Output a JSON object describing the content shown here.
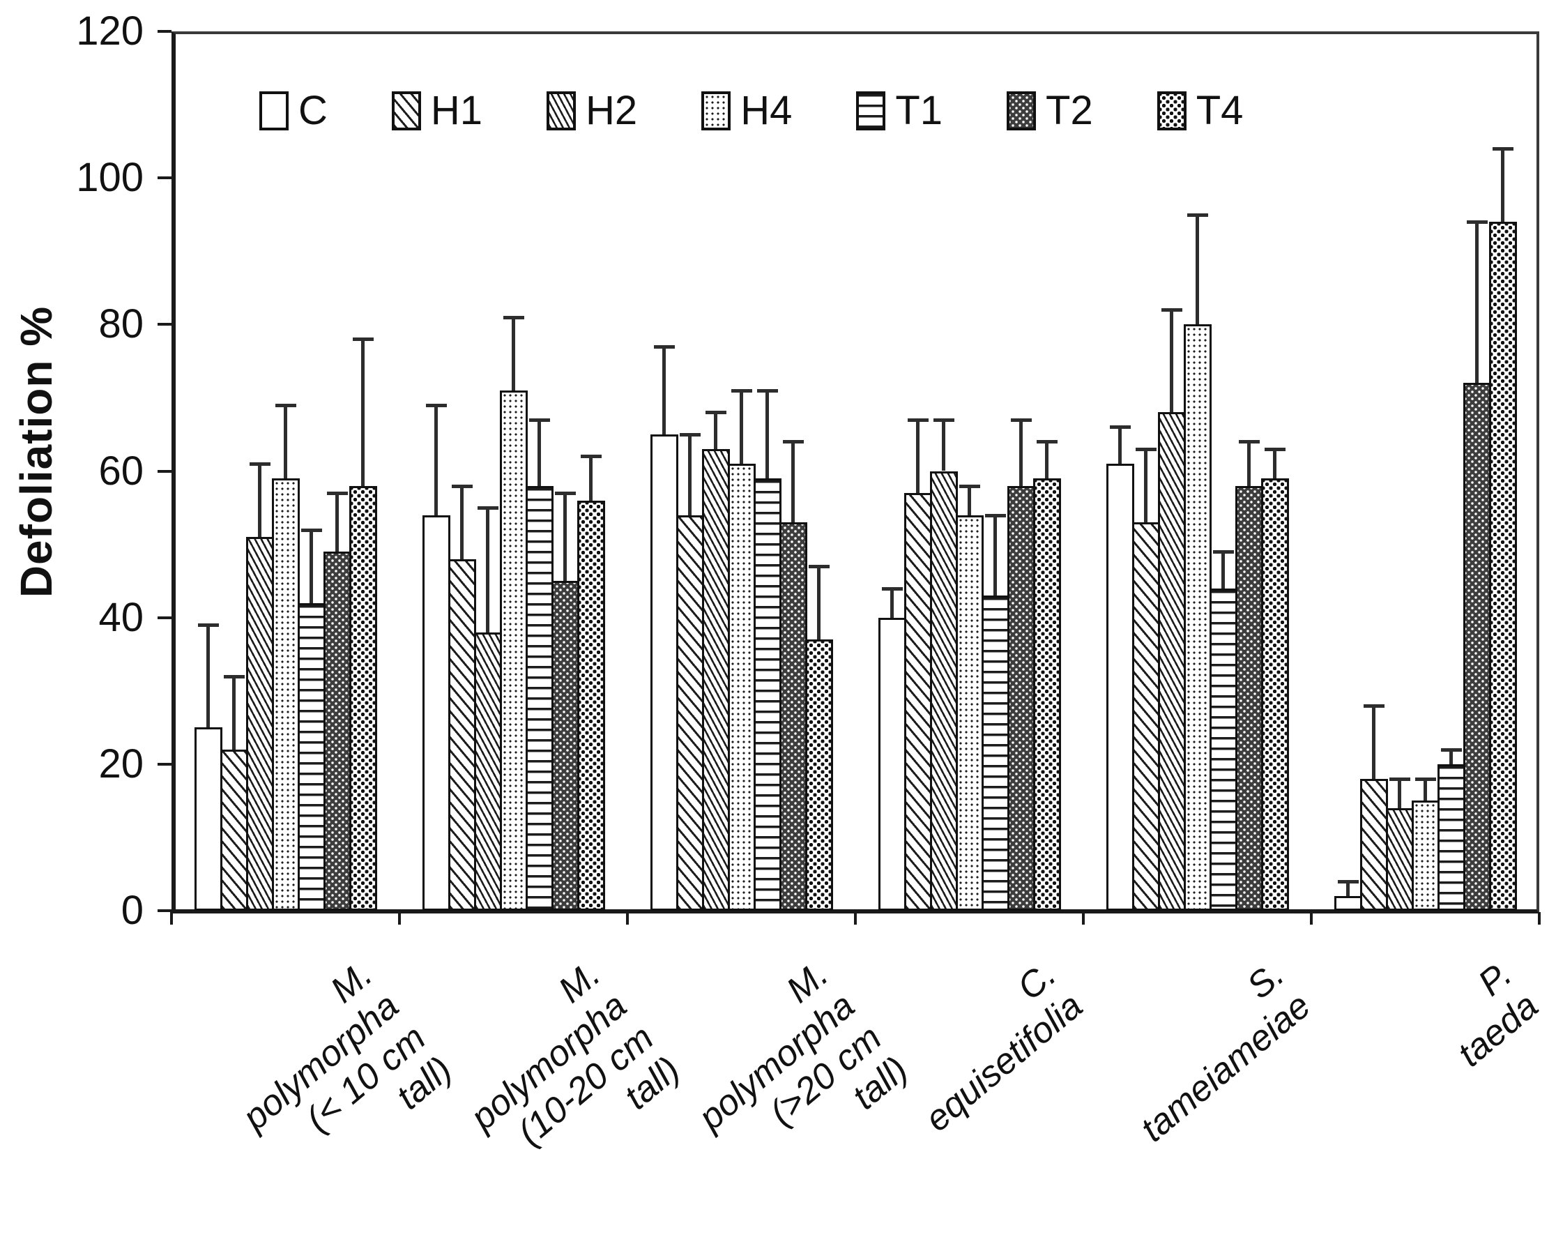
{
  "chart_data": {
    "type": "bar",
    "title": "",
    "ylabel": "Defoliation %",
    "xlabel": "",
    "ylim": [
      0,
      120
    ],
    "yticks": [
      0,
      20,
      40,
      60,
      80,
      100,
      120
    ],
    "grid": false,
    "legend_position": "top-inside-horizontal",
    "error_bars": "upper-only",
    "bar_outline_color": "#111111",
    "categories": [
      "M. polymorpha\n(< 10 cm tall)",
      "M. polymorpha\n(10-20 cm tall)",
      "M. polymorpha\n(>20 cm tall)",
      "C. equisetifolia",
      "S. tameiameiae",
      "P. taeda"
    ],
    "series": [
      {
        "name": "C",
        "pattern": "plain",
        "values": [
          25,
          54,
          65,
          40,
          61,
          2
        ],
        "errors_up": [
          14,
          15,
          12,
          4,
          5,
          2
        ]
      },
      {
        "name": "H1",
        "pattern": "hatch-light",
        "values": [
          22,
          48,
          54,
          57,
          53,
          18
        ],
        "errors_up": [
          10,
          10,
          11,
          10,
          10,
          10
        ]
      },
      {
        "name": "H2",
        "pattern": "hatch-dense",
        "values": [
          51,
          38,
          63,
          60,
          68,
          14
        ],
        "errors_up": [
          10,
          17,
          5,
          7,
          14,
          4
        ]
      },
      {
        "name": "H4",
        "pattern": "dots-fine",
        "values": [
          59,
          71,
          61,
          54,
          80,
          15
        ],
        "errors_up": [
          10,
          10,
          10,
          4,
          15,
          3
        ]
      },
      {
        "name": "T1",
        "pattern": "hlines",
        "values": [
          42,
          58,
          59,
          43,
          44,
          20
        ],
        "errors_up": [
          10,
          9,
          12,
          11,
          5,
          2
        ]
      },
      {
        "name": "T2",
        "pattern": "checker-dark",
        "values": [
          49,
          45,
          53,
          58,
          58,
          72
        ],
        "errors_up": [
          8,
          12,
          11,
          9,
          6,
          22
        ]
      },
      {
        "name": "T4",
        "pattern": "checker-coarse",
        "values": [
          58,
          56,
          37,
          59,
          59,
          94
        ],
        "errors_up": [
          20,
          6,
          10,
          5,
          4,
          10
        ]
      }
    ]
  }
}
